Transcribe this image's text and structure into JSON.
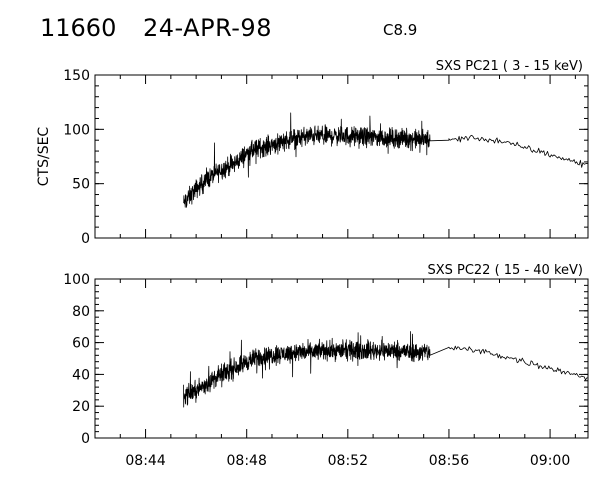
{
  "header": {
    "event_id": "11660",
    "date": "24-APR-98",
    "goes_class": "C8.9"
  },
  "colors": {
    "trace": "#000000",
    "axes": "#000000",
    "background": "#ffffff"
  },
  "chart_data": [
    {
      "type": "line",
      "title": "SXS PC21  (  3 - 15 keV)",
      "ylabel": "CTS/SEC",
      "xlabel": "",
      "x_unit": "UT (HH:MM)",
      "xlim": [
        "08:42:00",
        "09:01:30"
      ],
      "ylim": [
        0,
        150
      ],
      "yticks": [
        0,
        50,
        100,
        150
      ],
      "xticks": [
        "08:44",
        "08:48",
        "08:52",
        "08:56",
        "09:00"
      ],
      "show_xtick_labels": false,
      "grid": false,
      "series": [
        {
          "style": "noisy-dense-until-08:55:15-then-sparse",
          "points": [
            [
              "08:45:30",
              32
            ],
            [
              "08:46:00",
              45
            ],
            [
              "08:46:30",
              55
            ],
            [
              "08:47:00",
              63
            ],
            [
              "08:47:30",
              68
            ],
            [
              "08:48:00",
              78
            ],
            [
              "08:48:30",
              83
            ],
            [
              "08:49:00",
              86
            ],
            [
              "08:49:30",
              90
            ],
            [
              "08:50:00",
              92
            ],
            [
              "08:50:30",
              94
            ],
            [
              "08:51:00",
              94
            ],
            [
              "08:51:30",
              94
            ],
            [
              "08:52:00",
              94
            ],
            [
              "08:52:30",
              93
            ],
            [
              "08:53:00",
              93
            ],
            [
              "08:53:30",
              92
            ],
            [
              "08:54:00",
              92
            ],
            [
              "08:54:30",
              91
            ],
            [
              "08:55:00",
              91
            ],
            [
              "08:55:15",
              90
            ],
            [
              "08:56:00",
              90
            ],
            [
              "08:56:30",
              92
            ],
            [
              "08:57:00",
              92
            ],
            [
              "08:57:30",
              91
            ],
            [
              "08:58:00",
              89
            ],
            [
              "08:58:30",
              86
            ],
            [
              "08:59:00",
              83
            ],
            [
              "08:59:30",
              80
            ],
            [
              "09:00:00",
              77
            ],
            [
              "09:00:30",
              73
            ],
            [
              "09:01:00",
              70
            ],
            [
              "09:01:30",
              67
            ]
          ]
        }
      ]
    },
    {
      "type": "line",
      "title": "SXS PC22  ( 15 - 40 keV)",
      "ylabel": "",
      "xlabel": "",
      "x_unit": "UT (HH:MM)",
      "xlim": [
        "08:42:00",
        "09:01:30"
      ],
      "ylim": [
        0,
        100
      ],
      "yticks": [
        0,
        20,
        40,
        60,
        80,
        100
      ],
      "xticks": [
        "08:44",
        "08:48",
        "08:52",
        "08:56",
        "09:00"
      ],
      "show_xtick_labels": true,
      "grid": false,
      "series": [
        {
          "style": "noisy-dense-until-08:55:15-then-sparse",
          "points": [
            [
              "08:45:30",
              26
            ],
            [
              "08:46:00",
              30
            ],
            [
              "08:46:30",
              35
            ],
            [
              "08:47:00",
              40
            ],
            [
              "08:47:30",
              44
            ],
            [
              "08:48:00",
              48
            ],
            [
              "08:48:30",
              51
            ],
            [
              "08:49:00",
              52
            ],
            [
              "08:49:30",
              53
            ],
            [
              "08:50:00",
              54
            ],
            [
              "08:50:30",
              54
            ],
            [
              "08:51:00",
              55
            ],
            [
              "08:51:30",
              55
            ],
            [
              "08:52:00",
              55
            ],
            [
              "08:52:30",
              55
            ],
            [
              "08:53:00",
              55
            ],
            [
              "08:53:30",
              55
            ],
            [
              "08:54:00",
              55
            ],
            [
              "08:54:30",
              54
            ],
            [
              "08:55:00",
              54
            ],
            [
              "08:55:15",
              54
            ],
            [
              "08:56:00",
              57
            ],
            [
              "08:56:30",
              56
            ],
            [
              "08:57:00",
              55
            ],
            [
              "08:57:30",
              54
            ],
            [
              "08:58:00",
              52
            ],
            [
              "08:58:30",
              50
            ],
            [
              "08:59:00",
              48
            ],
            [
              "08:59:30",
              46
            ],
            [
              "09:00:00",
              44
            ],
            [
              "09:00:30",
              42
            ],
            [
              "09:01:00",
              40
            ],
            [
              "09:01:30",
              38
            ]
          ]
        }
      ]
    }
  ]
}
